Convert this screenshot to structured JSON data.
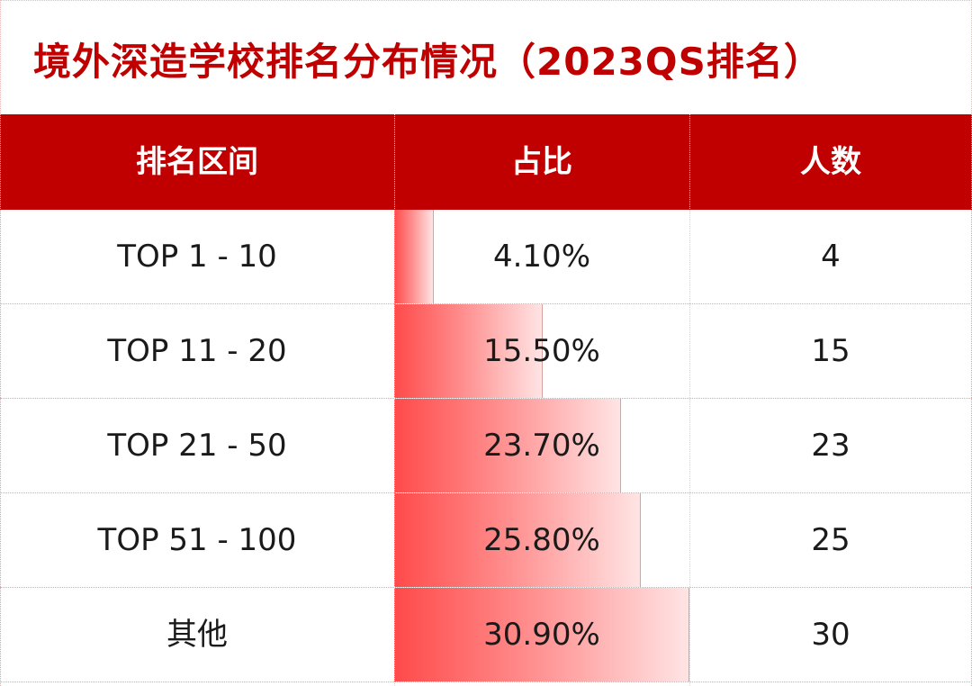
{
  "title": "境外深造学校排名分布情况（2023QS排名）",
  "header": {
    "col1": "排名区间",
    "col2": "占比",
    "col3": "人数"
  },
  "rows": [
    {
      "range": "TOP 1 - 10",
      "percent": "4.10%",
      "count": "4",
      "ratio": 0.041
    },
    {
      "range": "TOP 11 - 20",
      "percent": "15.50%",
      "count": "15",
      "ratio": 0.155
    },
    {
      "range": "TOP 21 - 50",
      "percent": "23.70%",
      "count": "23",
      "ratio": 0.237
    },
    {
      "range": "TOP 51 - 100",
      "percent": "25.80%",
      "count": "25",
      "ratio": 0.258
    },
    {
      "range": "其他",
      "percent": "30.90%",
      "count": "30",
      "ratio": 0.309
    }
  ],
  "colors": {
    "header_bg": "#c00000",
    "title_color": "#c00000",
    "bar_start": "#ff4a4a",
    "bar_end": "#ffe4e4"
  }
}
